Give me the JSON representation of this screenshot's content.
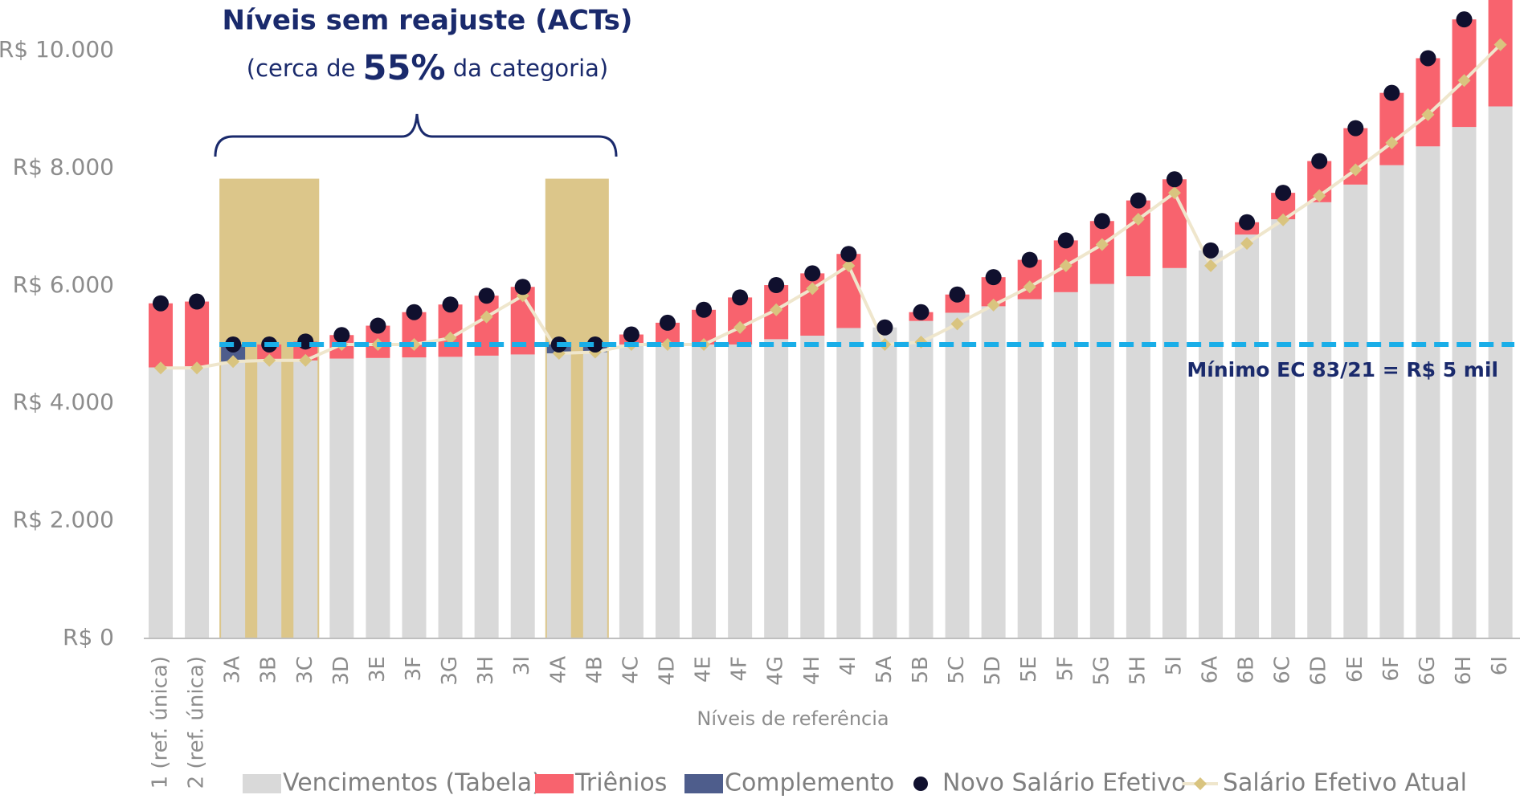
{
  "chart_data": {
    "type": "bar",
    "title": "Níveis sem reajuste (ACTs)",
    "subtitle_parts": [
      "(cerca de ",
      "55%",
      " da categoria)"
    ],
    "x_label": "Níveis de referência",
    "categories": [
      "1 (ref. única)",
      "2 (ref. única)",
      "3A",
      "3B",
      "3C",
      "3D",
      "3E",
      "3F",
      "3G",
      "3H",
      "3I",
      "4A",
      "4B",
      "4C",
      "4D",
      "4E",
      "4F",
      "4G",
      "4H",
      "4I",
      "5A",
      "5B",
      "5C",
      "5D",
      "5E",
      "5F",
      "5G",
      "5H",
      "5I",
      "6A",
      "6B",
      "6C",
      "6D",
      "6E",
      "6F",
      "6G",
      "6H",
      "6I"
    ],
    "series": [
      {
        "name": "Vencimentos (Tabela)",
        "kind": "bar",
        "color": "#d9d9d9",
        "values": [
          4610,
          4630,
          4710,
          4730,
          4730,
          4760,
          4770,
          4780,
          4790,
          4810,
          4830,
          4850,
          4870,
          5000,
          5000,
          5000,
          5000,
          5090,
          5150,
          5280,
          5290,
          5400,
          5540,
          5650,
          5770,
          5890,
          6030,
          6160,
          6300,
          6600,
          6870,
          7130,
          7420,
          7720,
          8050,
          8370,
          8700,
          9050
        ]
      },
      {
        "name": "Triênios",
        "kind": "bar",
        "color": "#f8636e",
        "values": [
          1090,
          1100,
          0,
          270,
          320,
          400,
          550,
          770,
          890,
          1020,
          1150,
          0,
          0,
          170,
          370,
          590,
          800,
          920,
          1060,
          1260,
          0,
          150,
          310,
          495,
          670,
          880,
          1070,
          1290,
          1510,
          0,
          210,
          450,
          700,
          960,
          1230,
          1500,
          1830,
          2100
        ]
      },
      {
        "name": "Complemento",
        "kind": "bar",
        "color": "#4e5d8c",
        "values": [
          0,
          0,
          290,
          0,
          0,
          0,
          0,
          0,
          0,
          0,
          0,
          150,
          130,
          0,
          0,
          0,
          0,
          0,
          0,
          0,
          0,
          0,
          0,
          0,
          0,
          0,
          0,
          0,
          0,
          0,
          0,
          0,
          0,
          0,
          0,
          0,
          0,
          0
        ]
      },
      {
        "name": "Novo Salário Efetivo",
        "kind": "dot",
        "color": "#10102e",
        "values": [
          5700,
          5730,
          5000,
          5000,
          5050,
          5160,
          5320,
          5550,
          5680,
          5830,
          5980,
          5000,
          5000,
          5170,
          5370,
          5590,
          5800,
          6010,
          6210,
          6540,
          5290,
          5550,
          5850,
          6145,
          6440,
          6770,
          7100,
          7450,
          7810,
          6600,
          7080,
          7580,
          8120,
          8680,
          9280,
          9870,
          10530,
          11150
        ]
      },
      {
        "name": "Salário Efetivo Atual",
        "kind": "line",
        "color": "#d9c47f",
        "line_color": "#efe6cc",
        "values": [
          4600,
          4600,
          4710,
          4730,
          4730,
          5000,
          5000,
          5000,
          5110,
          5470,
          5830,
          4850,
          4870,
          5000,
          5000,
          5000,
          5290,
          5590,
          5950,
          6340,
          5000,
          5040,
          5350,
          5670,
          5980,
          6340,
          6700,
          7130,
          7580,
          6340,
          6720,
          7120,
          7530,
          7970,
          8430,
          8910,
          9490,
          10100
        ]
      }
    ],
    "stacked": true,
    "ylim": [
      0,
      10860
    ],
    "yticks": [
      {
        "value": 0,
        "label": "R$ 0"
      },
      {
        "value": 2000,
        "label": "R$ 2.000"
      },
      {
        "value": 4000,
        "label": "R$ 4.000"
      },
      {
        "value": 6000,
        "label": "R$ 6.000"
      },
      {
        "value": 8000,
        "label": "R$ 8.000"
      },
      {
        "value": 10000,
        "label": "R$ 10.000"
      }
    ],
    "grid": false,
    "reference_line": {
      "value": 5000,
      "label": "Mínimo EC 83/21 = R$ 5 mil",
      "color": "#1aaee8"
    },
    "highlights": [
      [
        "3A",
        "3C"
      ],
      [
        "4A",
        "4B"
      ]
    ],
    "highlight_top": 7820,
    "highlight_color": "#dcc68a",
    "legend": "bottom"
  }
}
